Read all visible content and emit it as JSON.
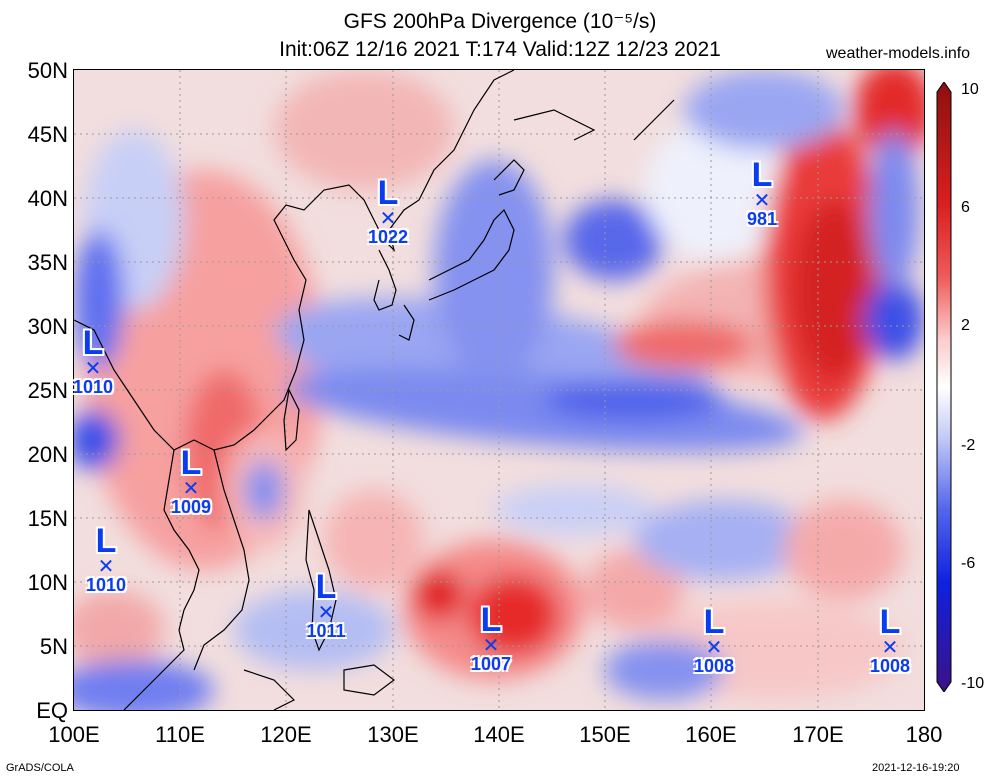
{
  "header": {
    "title_line1": "GFS 200hPa Divergence (10⁻⁵/s)",
    "title_line2": "Init:06Z 12/16 2021 T:174 Valid:12Z 12/23 2021",
    "site": "weather-models.info"
  },
  "map": {
    "lat_ticks": [
      "50N",
      "45N",
      "40N",
      "35N",
      "30N",
      "25N",
      "20N",
      "15N",
      "10N",
      "5N",
      "EQ"
    ],
    "lon_ticks": [
      "100E",
      "110E",
      "120E",
      "130E",
      "140E",
      "150E",
      "160E",
      "170E",
      "180"
    ],
    "grid": true,
    "colors": {
      "positive": "#e8101a",
      "negative": "#1d32e6",
      "neutral": "#ffffff",
      "coast": "#000000",
      "low_marker": "#0b3df0"
    }
  },
  "colorbar": {
    "labels": [
      "10",
      "6",
      "2",
      "-2",
      "-6",
      "-10"
    ]
  },
  "lows": [
    {
      "label": "L",
      "pressure": "1022"
    },
    {
      "label": "L",
      "pressure": "981"
    },
    {
      "label": "L",
      "pressure": "1010"
    },
    {
      "label": "L",
      "pressure": "1009"
    },
    {
      "label": "L",
      "pressure": "1010"
    },
    {
      "label": "L",
      "pressure": "1011"
    },
    {
      "label": "L",
      "pressure": "1007"
    },
    {
      "label": "L",
      "pressure": "1008"
    },
    {
      "label": "L",
      "pressure": "1008"
    }
  ],
  "footer": {
    "left": "GrADS/COLA",
    "right": "2021-12-16-19:20"
  }
}
